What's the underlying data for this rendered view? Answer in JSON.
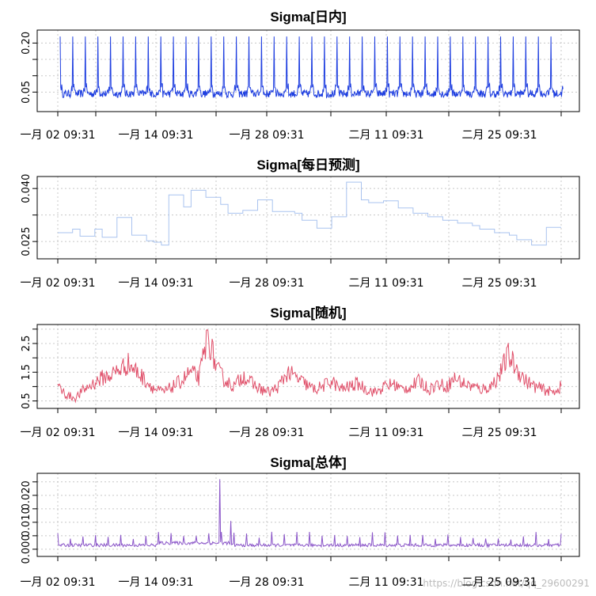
{
  "chart_data": [
    {
      "type": "line",
      "title": "Sigma[日内]",
      "color": "#1f3fe0",
      "x_tick_labels": [
        "一月 02 09:31",
        "一月 14 09:31",
        "一月 28 09:31",
        "二月 11 09:31",
        "二月 25 09:31"
      ],
      "y_tick_labels": [
        "0.05",
        "0.20"
      ],
      "ylim": [
        0.0,
        0.23
      ],
      "pattern": "intraday",
      "series": [
        {
          "name": "Sigma[日内]",
          "days": 40,
          "base": 0.045,
          "spike": 0.22,
          "noise": 0.012
        }
      ]
    },
    {
      "type": "line",
      "title": "Sigma[每日预测]",
      "color": "#a9c3ef",
      "x_tick_labels": [
        "一月 02 09:31",
        "一月 14 09:31",
        "一月 28 09:31",
        "二月 11 09:31",
        "二月 25 09:31"
      ],
      "y_tick_labels": [
        "0.025",
        "0.040"
      ],
      "ylim": [
        0.021,
        0.0425
      ],
      "pattern": "step",
      "series": [
        {
          "name": "Sigma[每日预测]",
          "values": [
            0.0275,
            0.0275,
            0.0285,
            0.0265,
            0.0265,
            0.0285,
            0.0262,
            0.0262,
            0.0318,
            0.0318,
            0.0268,
            0.0268,
            0.0252,
            0.0248,
            0.024,
            0.0382,
            0.0382,
            0.0348,
            0.0395,
            0.0395,
            0.0375,
            0.0375,
            0.0355,
            0.033,
            0.033,
            0.0338,
            0.0338,
            0.0368,
            0.0368,
            0.0335,
            0.0335,
            0.0335,
            0.033,
            0.031,
            0.031,
            0.0288,
            0.0288,
            0.032,
            0.032,
            0.0418,
            0.0418,
            0.0368,
            0.036,
            0.036,
            0.0365,
            0.0365,
            0.0345,
            0.0345,
            0.033,
            0.033,
            0.032,
            0.032,
            0.031,
            0.031,
            0.0302,
            0.0302,
            0.0295,
            0.0285,
            0.0285,
            0.0275,
            0.0275,
            0.0268,
            0.0255,
            0.0255,
            0.024,
            0.024,
            0.029,
            0.029
          ]
        }
      ]
    },
    {
      "type": "line",
      "title": "Sigma[随机]",
      "color": "#e0506a",
      "x_tick_labels": [
        "一月 02 09:31",
        "一月 14 09:31",
        "一月 28 09:31",
        "二月 11 09:31",
        "二月 25 09:31"
      ],
      "y_tick_labels": [
        "0.5",
        "1.5",
        "2.5"
      ],
      "ylim": [
        0.35,
        3.05
      ],
      "pattern": "noisy",
      "series": [
        {
          "name": "Sigma[随机]",
          "anchors": [
            1.0,
            0.7,
            0.6,
            0.9,
            1.1,
            1.3,
            1.4,
            1.6,
            1.8,
            1.5,
            1.2,
            0.9,
            0.8,
            1.0,
            1.2,
            1.5,
            1.3,
            2.8,
            1.6,
            1.2,
            1.0,
            1.4,
            1.1,
            0.9,
            0.8,
            1.0,
            1.5,
            1.3,
            1.1,
            0.9,
            1.0,
            1.2,
            0.9,
            1.0,
            1.1,
            0.9,
            0.8,
            1.0,
            1.1,
            0.9,
            1.0,
            1.2,
            0.9,
            1.1,
            1.0,
            1.3,
            1.1,
            1.0,
            0.9,
            1.0,
            1.4,
            2.1,
            1.6,
            1.2,
            1.0,
            0.9,
            0.8,
            1.0
          ]
        }
      ]
    },
    {
      "type": "line",
      "title": "Sigma[总体]",
      "color": "#8a55c8",
      "x_tick_labels": [
        "一月 02 09:31",
        "一月 14 09:31",
        "一月 28 09:31",
        "二月 11 09:31",
        "二月 25 09:31"
      ],
      "y_tick_labels": [
        "0.000",
        "0.010",
        "0.020"
      ],
      "ylim": [
        -0.0015,
        0.027
      ],
      "pattern": "spiky",
      "series": [
        {
          "name": "Sigma[总体]",
          "base": 0.0015,
          "big_spike": 0.026,
          "spike": 0.005
        }
      ]
    }
  ],
  "watermark": "https://blog.csdn.net/qq_29600291"
}
